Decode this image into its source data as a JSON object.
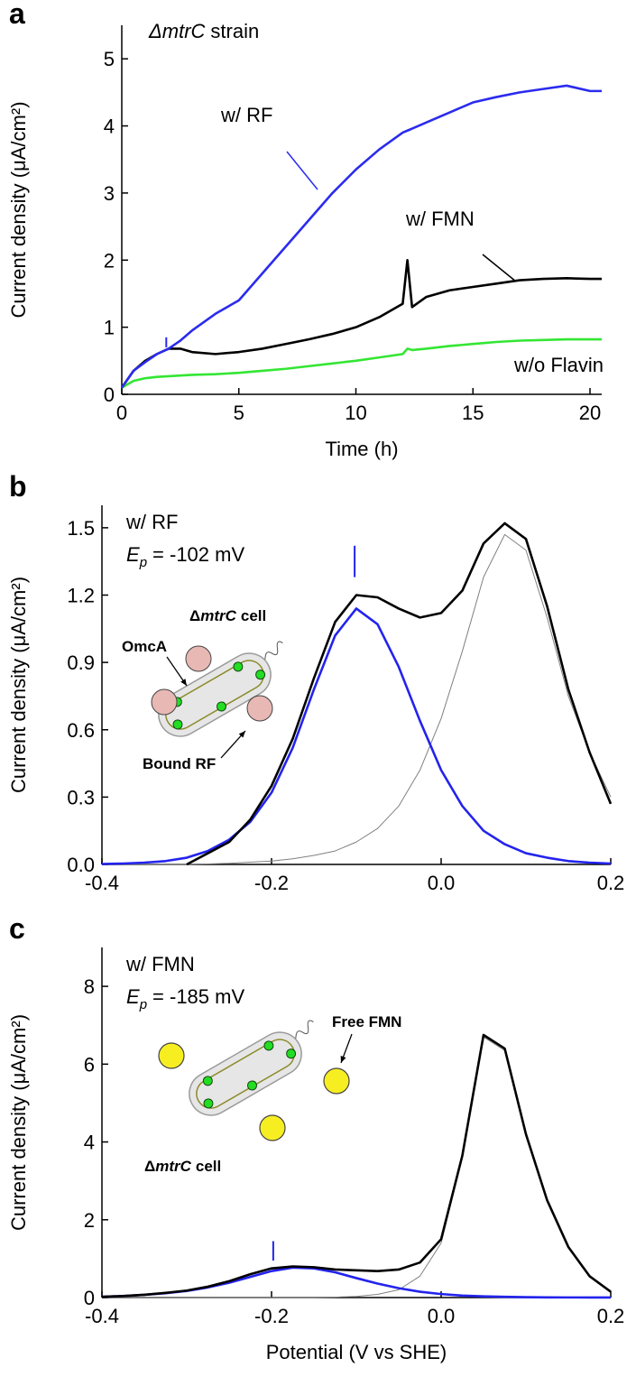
{
  "chart_data": [
    {
      "type": "line",
      "panel": "a",
      "annotation": {
        "italic": "ΔmtrC",
        "text": "strain"
      },
      "x_label": "Time (h)",
      "y_label": "Current density (μA/cm²)",
      "xlim": [
        0,
        20.5
      ],
      "ylim": [
        0,
        5.5
      ],
      "xticks": [
        0,
        5,
        10,
        15,
        20
      ],
      "yticks": [
        0,
        1,
        2,
        3,
        4,
        5
      ],
      "x": [
        0,
        0.5,
        1,
        1.5,
        2,
        2.5,
        3,
        4,
        5,
        6,
        7,
        8,
        9,
        10,
        11,
        12,
        12.2,
        12.4,
        13,
        14,
        15,
        16,
        17,
        18,
        19,
        20,
        20.5
      ],
      "series": [
        {
          "name": "w/ RF",
          "color": "#2b2bef",
          "values": [
            0.1,
            0.35,
            0.48,
            0.6,
            0.68,
            0.8,
            0.95,
            1.2,
            1.4,
            1.8,
            2.2,
            2.6,
            3,
            3.35,
            3.65,
            3.9,
            3.93,
            3.96,
            4.05,
            4.2,
            4.35,
            4.43,
            4.5,
            4.55,
            4.6,
            4.52,
            4.52
          ]
        },
        {
          "name": "w/ FMN",
          "color": "#000000",
          "values": [
            0.1,
            0.35,
            0.5,
            0.6,
            0.68,
            0.68,
            0.63,
            0.6,
            0.63,
            0.68,
            0.75,
            0.82,
            0.9,
            1.0,
            1.15,
            1.35,
            2.0,
            1.3,
            1.45,
            1.55,
            1.6,
            1.65,
            1.7,
            1.72,
            1.73,
            1.72,
            1.72
          ]
        },
        {
          "name": "w/o Flavin",
          "color": "#33e633",
          "values": [
            0.1,
            0.2,
            0.24,
            0.26,
            0.27,
            0.28,
            0.29,
            0.3,
            0.32,
            0.35,
            0.38,
            0.42,
            0.46,
            0.5,
            0.55,
            0.6,
            0.68,
            0.66,
            0.68,
            0.72,
            0.75,
            0.78,
            0.8,
            0.81,
            0.82,
            0.82,
            0.82
          ]
        }
      ],
      "marker_x": 1.9,
      "marker_y": [
        0.7,
        0.85
      ],
      "marker_color": "#2b2bef"
    },
    {
      "type": "line",
      "panel": "b",
      "annotation": "w/ RF",
      "ep": {
        "symbol": "E",
        "sub": "p",
        "text": "= -102 mV"
      },
      "inset": {
        "cell": {
          "delta": "Δ",
          "italic": "mtrC",
          "text": "cell"
        },
        "labels": [
          "OmcA",
          "Bound RF"
        ]
      },
      "y_label": "Current density (μA/cm²)",
      "xlim": [
        -0.4,
        0.2
      ],
      "ylim": [
        0,
        1.6
      ],
      "xticks": [
        -0.4,
        -0.2,
        {
          "value": 0,
          "label": "0.0"
        },
        0.2
      ],
      "yticks": [
        {
          "value": 0,
          "label": "0.0"
        },
        0.3,
        0.6,
        0.9,
        1.2,
        1.5
      ],
      "x": [
        -0.4,
        -0.375,
        -0.35,
        -0.325,
        -0.3,
        -0.275,
        -0.25,
        -0.225,
        -0.2,
        -0.175,
        -0.15,
        -0.125,
        -0.1,
        -0.075,
        -0.05,
        -0.025,
        0,
        0.025,
        0.05,
        0.075,
        0.1,
        0.125,
        0.15,
        0.175,
        0.2
      ],
      "series": [
        {
          "color": "#000000",
          "values": [
            null,
            null,
            null,
            null,
            0,
            0.05,
            0.1,
            0.2,
            0.35,
            0.56,
            0.83,
            1.08,
            1.2,
            1.19,
            1.14,
            1.1,
            1.12,
            1.22,
            1.43,
            1.52,
            1.45,
            1.15,
            0.78,
            0.5,
            0.27
          ]
        },
        {
          "color": "#2323ee",
          "values": [
            0.002,
            0.004,
            0.008,
            0.015,
            0.03,
            0.06,
            0.11,
            0.19,
            0.32,
            0.52,
            0.78,
            1.02,
            1.14,
            1.07,
            0.88,
            0.64,
            0.42,
            0.26,
            0.15,
            0.09,
            0.05,
            0.03,
            0.015,
            0.008,
            0.004
          ]
        },
        {
          "color": "#808080",
          "values": [
            0,
            0,
            0,
            0,
            0,
            0.002,
            0.005,
            0.01,
            0.015,
            0.025,
            0.04,
            0.06,
            0.1,
            0.16,
            0.26,
            0.42,
            0.65,
            0.95,
            1.28,
            1.47,
            1.4,
            1.1,
            0.75,
            0.5,
            0.3
          ]
        }
      ],
      "marker_x": -0.102,
      "marker_y": [
        1.28,
        1.42
      ],
      "marker_color": "#2323ee"
    },
    {
      "type": "line",
      "panel": "c",
      "annotation": "w/ FMN",
      "ep": {
        "symbol": "E",
        "sub": "p",
        "text": "= -185 mV"
      },
      "inset": {
        "cell": {
          "delta": "Δ",
          "italic": "mtrC",
          "text": "cell"
        },
        "labels": [
          "Free FMN"
        ]
      },
      "x_label": "Potential (V vs SHE)",
      "y_label": "Current density (μA/cm²)",
      "xlim": [
        -0.4,
        0.2
      ],
      "ylim": [
        0,
        9
      ],
      "xticks": [
        -0.4,
        -0.2,
        {
          "value": 0,
          "label": "0.0"
        },
        0.2
      ],
      "yticks": [
        0,
        2,
        4,
        6,
        8
      ],
      "x": [
        -0.4,
        -0.375,
        -0.35,
        -0.325,
        -0.3,
        -0.275,
        -0.25,
        -0.225,
        -0.2,
        -0.175,
        -0.15,
        -0.125,
        -0.1,
        -0.075,
        -0.05,
        -0.025,
        0,
        0.025,
        0.05,
        0.075,
        0.1,
        0.125,
        0.15,
        0.175,
        0.2
      ],
      "series": [
        {
          "color": "#000000",
          "values": [
            0.02,
            0.04,
            0.07,
            0.12,
            0.18,
            0.28,
            0.42,
            0.6,
            0.75,
            0.8,
            0.78,
            0.72,
            0.7,
            0.68,
            0.72,
            0.9,
            1.5,
            3.65,
            6.75,
            6.4,
            4.2,
            2.5,
            1.3,
            0.55,
            0.15
          ]
        },
        {
          "color": "#2323ee",
          "values": [
            0.02,
            0.04,
            0.07,
            0.11,
            0.17,
            0.26,
            0.38,
            0.53,
            0.68,
            0.77,
            0.75,
            0.65,
            0.5,
            0.36,
            0.24,
            0.15,
            0.09,
            0.05,
            0.03,
            0.02,
            0.01,
            0.005,
            0.003,
            0.002,
            0.001
          ]
        },
        {
          "color": "#808080",
          "values": [
            0,
            0,
            0,
            0,
            0,
            0,
            0,
            0,
            0,
            0,
            0,
            0.01,
            0.03,
            0.08,
            0.2,
            0.55,
            1.4,
            3.6,
            6.7,
            6.35,
            4.2,
            2.5,
            1.3,
            0.55,
            0.15
          ]
        }
      ],
      "marker_x": -0.198,
      "marker_y": [
        0.95,
        1.45
      ],
      "marker_color": "#2323ee"
    }
  ]
}
